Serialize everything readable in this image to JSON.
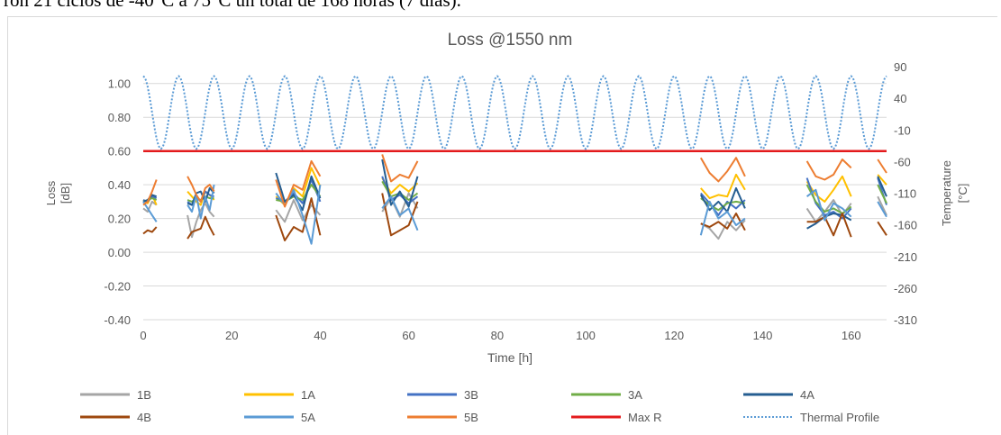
{
  "document": {
    "caption_fragment": "ron 21 ciclos de -40°C a 75°C un total de 168 horas (7 días)."
  },
  "chart_data": {
    "type": "line",
    "title": "Loss @1550 nm",
    "xlabel": "Time [h]",
    "ylabel": "Loss\n[dB]",
    "y2label": "Temperature\n[°C]",
    "xlim": [
      0,
      168
    ],
    "ylim": [
      -0.4,
      1.1
    ],
    "y2lim": [
      -310,
      90
    ],
    "xticks": [
      "0",
      "20",
      "40",
      "60",
      "80",
      "100",
      "120",
      "140",
      "160"
    ],
    "xtick_values": [
      0,
      20,
      40,
      60,
      80,
      100,
      120,
      140,
      160
    ],
    "yticks": [
      "-0.40",
      "-0.20",
      "0.00",
      "0.20",
      "0.40",
      "0.60",
      "0.80",
      "1.00"
    ],
    "ytick_values": [
      -0.4,
      -0.2,
      0.0,
      0.2,
      0.4,
      0.6,
      0.8,
      1.0
    ],
    "y2ticks": [
      "-310",
      "-260",
      "-210",
      "-160",
      "-110",
      "-60",
      "-10",
      "40",
      "90"
    ],
    "y2tick_values": [
      -310,
      -260,
      -210,
      -160,
      -110,
      -60,
      -10,
      40,
      90
    ],
    "grid": "horizontal",
    "legend_position": "bottom",
    "series": [
      {
        "name": "1B",
        "color": "#a5a5a5",
        "style": "solid",
        "axis": "left",
        "segments": [
          {
            "x": [
              0,
              1,
              2,
              3
            ],
            "y": [
              0.26,
              0.24,
              0.3,
              0.28
            ]
          },
          {
            "x": [
              10,
              11,
              12,
              13,
              14,
              15,
              16
            ],
            "y": [
              0.22,
              0.09,
              0.18,
              0.25,
              0.29,
              0.24,
              0.21
            ]
          },
          {
            "x": [
              30,
              32,
              34,
              36,
              38,
              40
            ],
            "y": [
              0.25,
              0.18,
              0.31,
              0.19,
              0.28,
              0.22
            ]
          },
          {
            "x": [
              54,
              56,
              58,
              60,
              62
            ],
            "y": [
              0.24,
              0.32,
              0.21,
              0.35,
              0.26
            ]
          },
          {
            "x": [
              126,
              128,
              130,
              132,
              134,
              136
            ],
            "y": [
              0.17,
              0.14,
              0.08,
              0.18,
              0.13,
              0.19
            ]
          },
          {
            "x": [
              150,
              152,
              154,
              156,
              158,
              160
            ],
            "y": [
              0.26,
              0.18,
              0.24,
              0.31,
              0.22,
              0.29
            ]
          },
          {
            "x": [
              166,
              168
            ],
            "y": [
              0.33,
              0.22
            ]
          }
        ]
      },
      {
        "name": "1A",
        "color": "#ffc000",
        "style": "solid",
        "axis": "left",
        "segments": [
          {
            "x": [
              0,
              1,
              2,
              3
            ],
            "y": [
              0.31,
              0.29,
              0.34,
              0.28
            ]
          },
          {
            "x": [
              10,
              11,
              12,
              13,
              14,
              15,
              16
            ],
            "y": [
              0.36,
              0.33,
              0.3,
              0.28,
              0.36,
              0.34,
              0.31
            ]
          },
          {
            "x": [
              30,
              32,
              34,
              36,
              38,
              40
            ],
            "y": [
              0.33,
              0.28,
              0.38,
              0.33,
              0.5,
              0.39
            ]
          },
          {
            "x": [
              54,
              56,
              58,
              60,
              62
            ],
            "y": [
              0.44,
              0.35,
              0.4,
              0.36,
              0.41
            ]
          },
          {
            "x": [
              126,
              128,
              130,
              132,
              134,
              136
            ],
            "y": [
              0.38,
              0.32,
              0.34,
              0.33,
              0.46,
              0.37
            ]
          },
          {
            "x": [
              150,
              152,
              154,
              156,
              158,
              160
            ],
            "y": [
              0.42,
              0.34,
              0.3,
              0.37,
              0.45,
              0.33
            ]
          },
          {
            "x": [
              166,
              168
            ],
            "y": [
              0.46,
              0.4
            ]
          }
        ]
      },
      {
        "name": "3B",
        "color": "#4472c4",
        "style": "solid",
        "axis": "left",
        "segments": [
          {
            "x": [
              0,
              1,
              2,
              3
            ],
            "y": [
              0.31,
              0.3,
              0.33,
              0.32
            ]
          },
          {
            "x": [
              10,
              11,
              12,
              13,
              14,
              15,
              16
            ],
            "y": [
              0.3,
              0.28,
              0.33,
              0.3,
              0.36,
              0.34,
              0.33
            ]
          },
          {
            "x": [
              30,
              32,
              34,
              36,
              38,
              40
            ],
            "y": [
              0.32,
              0.3,
              0.35,
              0.29,
              0.43,
              0.3
            ]
          },
          {
            "x": [
              54,
              56,
              58,
              60,
              62
            ],
            "y": [
              0.45,
              0.31,
              0.34,
              0.29,
              0.33
            ]
          },
          {
            "x": [
              126,
              128,
              130,
              132,
              134,
              136
            ],
            "y": [
              0.35,
              0.29,
              0.22,
              0.3,
              0.26,
              0.31
            ]
          },
          {
            "x": [
              150,
              152,
              154,
              156,
              158,
              160
            ],
            "y": [
              0.44,
              0.29,
              0.22,
              0.24,
              0.2,
              0.26
            ]
          },
          {
            "x": [
              166,
              168
            ],
            "y": [
              0.44,
              0.28
            ]
          }
        ]
      },
      {
        "name": "3A",
        "color": "#70ad47",
        "style": "solid",
        "axis": "left",
        "segments": [
          {
            "x": [
              0,
              1,
              2,
              3
            ],
            "y": [
              0.3,
              0.31,
              0.32,
              0.31
            ]
          },
          {
            "x": [
              10,
              11,
              12,
              13,
              14,
              15,
              16
            ],
            "y": [
              0.31,
              0.3,
              0.32,
              0.31,
              0.33,
              0.32,
              0.32
            ]
          },
          {
            "x": [
              30,
              32,
              34,
              36,
              38,
              40
            ],
            "y": [
              0.31,
              0.3,
              0.33,
              0.31,
              0.4,
              0.33
            ]
          },
          {
            "x": [
              54,
              56,
              58,
              60,
              62
            ],
            "y": [
              0.42,
              0.33,
              0.35,
              0.31,
              0.35
            ]
          },
          {
            "x": [
              126,
              128,
              130,
              132,
              134,
              136
            ],
            "y": [
              0.32,
              0.28,
              0.25,
              0.29,
              0.3,
              0.29
            ]
          },
          {
            "x": [
              150,
              152,
              154,
              156,
              158,
              160
            ],
            "y": [
              0.4,
              0.3,
              0.24,
              0.26,
              0.23,
              0.27
            ]
          },
          {
            "x": [
              166,
              168
            ],
            "y": [
              0.4,
              0.29
            ]
          }
        ]
      },
      {
        "name": "4A",
        "color": "#255e91",
        "style": "solid",
        "axis": "left",
        "segments": [
          {
            "x": [
              0,
              1,
              2,
              3
            ],
            "y": [
              0.3,
              0.31,
              0.34,
              0.33
            ]
          },
          {
            "x": [
              10,
              11,
              12,
              13,
              14,
              15,
              16
            ],
            "y": [
              0.29,
              0.28,
              0.35,
              0.36,
              0.3,
              0.38,
              0.35
            ]
          },
          {
            "x": [
              30,
              32,
              34,
              36,
              38,
              40
            ],
            "y": [
              0.47,
              0.3,
              0.34,
              0.25,
              0.45,
              0.32
            ]
          },
          {
            "x": [
              54,
              56,
              58,
              60,
              62
            ],
            "y": [
              0.55,
              0.28,
              0.36,
              0.27,
              0.45
            ]
          },
          {
            "x": [
              126,
              128,
              130,
              132,
              134,
              136
            ],
            "y": [
              0.34,
              0.25,
              0.3,
              0.24,
              0.38,
              0.26
            ]
          },
          {
            "x": [
              150,
              152,
              154,
              156,
              158,
              160
            ],
            "y": [
              0.14,
              0.17,
              0.21,
              0.23,
              0.22,
              0.19
            ]
          },
          {
            "x": [
              166,
              168
            ],
            "y": [
              0.45,
              0.33
            ]
          }
        ]
      },
      {
        "name": "4B",
        "color": "#9e480e",
        "style": "solid",
        "axis": "left",
        "segments": [
          {
            "x": [
              0,
              1,
              2,
              3
            ],
            "y": [
              0.11,
              0.13,
              0.12,
              0.15
            ]
          },
          {
            "x": [
              10,
              11,
              12,
              13,
              14,
              15,
              16
            ],
            "y": [
              0.08,
              0.12,
              0.13,
              0.14,
              0.21,
              0.15,
              0.1
            ]
          },
          {
            "x": [
              30,
              32,
              34,
              36,
              38,
              40
            ],
            "y": [
              0.22,
              0.07,
              0.15,
              0.12,
              0.32,
              0.1
            ]
          },
          {
            "x": [
              54,
              56,
              58,
              60,
              62
            ],
            "y": [
              0.35,
              0.1,
              0.13,
              0.16,
              0.3
            ]
          },
          {
            "x": [
              126,
              128,
              130,
              132,
              134,
              136
            ],
            "y": [
              0.17,
              0.15,
              0.18,
              0.14,
              0.23,
              0.13
            ]
          },
          {
            "x": [
              150,
              152,
              154,
              156,
              158,
              160
            ],
            "y": [
              0.18,
              0.18,
              0.21,
              0.1,
              0.23,
              0.09
            ]
          },
          {
            "x": [
              166,
              168
            ],
            "y": [
              0.18,
              0.1
            ]
          }
        ]
      },
      {
        "name": "5A",
        "color": "#5b9bd5",
        "style": "solid",
        "axis": "left",
        "segments": [
          {
            "x": [
              0,
              1,
              2,
              3
            ],
            "y": [
              0.3,
              0.26,
              0.22,
              0.18
            ]
          },
          {
            "x": [
              10,
              11,
              12,
              13,
              14,
              15,
              16
            ],
            "y": [
              0.28,
              0.24,
              0.34,
              0.2,
              0.33,
              0.25,
              0.4
            ]
          },
          {
            "x": [
              30,
              32,
              34,
              36,
              38,
              40
            ],
            "y": [
              0.35,
              0.28,
              0.37,
              0.22,
              0.05,
              0.4
            ]
          },
          {
            "x": [
              54,
              56,
              58,
              60,
              62
            ],
            "y": [
              0.26,
              0.33,
              0.22,
              0.26,
              0.13
            ]
          },
          {
            "x": [
              126,
              128,
              130,
              132,
              134,
              136
            ],
            "y": [
              0.1,
              0.3,
              0.2,
              0.24,
              0.16,
              0.2
            ]
          },
          {
            "x": [
              150,
              152,
              154,
              156,
              158,
              160
            ],
            "y": [
              0.33,
              0.37,
              0.19,
              0.29,
              0.26,
              0.21
            ]
          },
          {
            "x": [
              166,
              168
            ],
            "y": [
              0.3,
              0.21
            ]
          }
        ]
      },
      {
        "name": "5B",
        "color": "#ed7d31",
        "style": "solid",
        "axis": "left",
        "segments": [
          {
            "x": [
              0,
              1,
              2,
              3
            ],
            "y": [
              0.28,
              0.3,
              0.36,
              0.43
            ]
          },
          {
            "x": [
              10,
              11,
              12,
              13,
              14,
              15,
              16
            ],
            "y": [
              0.45,
              0.4,
              0.34,
              0.3,
              0.38,
              0.4,
              0.36
            ]
          },
          {
            "x": [
              30,
              32,
              34,
              36,
              38,
              40
            ],
            "y": [
              0.43,
              0.27,
              0.4,
              0.37,
              0.54,
              0.45
            ]
          },
          {
            "x": [
              54,
              56,
              58,
              60,
              62
            ],
            "y": [
              0.58,
              0.42,
              0.46,
              0.44,
              0.54
            ]
          },
          {
            "x": [
              126,
              128,
              130,
              132,
              134,
              136
            ],
            "y": [
              0.56,
              0.47,
              0.42,
              0.48,
              0.56,
              0.45
            ]
          },
          {
            "x": [
              150,
              152,
              154,
              156,
              158,
              160
            ],
            "y": [
              0.54,
              0.45,
              0.43,
              0.46,
              0.55,
              0.5
            ]
          },
          {
            "x": [
              166,
              168
            ],
            "y": [
              0.55,
              0.47
            ]
          }
        ]
      },
      {
        "name": "Max R",
        "color": "#e31a1c",
        "style": "solid",
        "axis": "left",
        "segments": [
          {
            "x": [
              0,
              168
            ],
            "y": [
              0.6,
              0.6
            ]
          }
        ]
      },
      {
        "name": "Thermal Profile",
        "color": "#5b9bd5",
        "style": "dotted",
        "axis": "right",
        "profile": {
          "type": "cyclic",
          "min": -40,
          "max": 75,
          "period_h": 8,
          "cycles": 21
        }
      }
    ]
  }
}
